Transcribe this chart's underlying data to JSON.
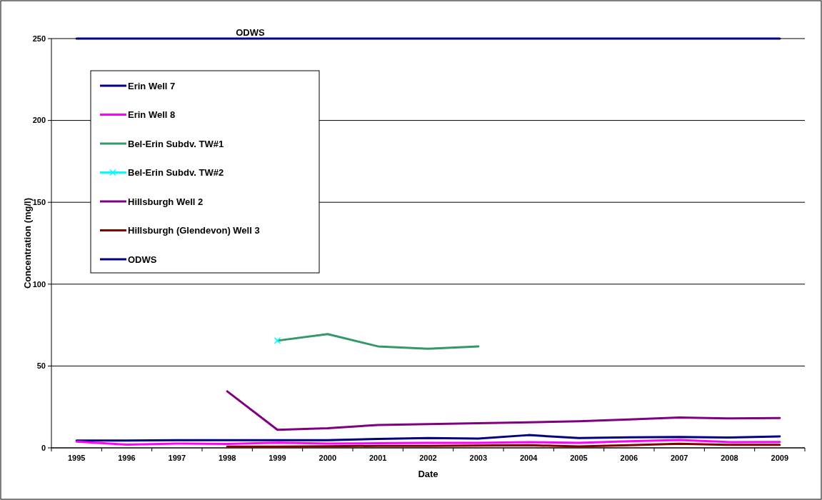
{
  "chart_data": {
    "type": "line",
    "xlabel": "Date",
    "ylabel": "Concentration (mg/l)",
    "categories": [
      "1995",
      "1996",
      "1997",
      "1998",
      "1999",
      "2000",
      "2001",
      "2002",
      "2003",
      "2004",
      "2005",
      "2006",
      "2007",
      "2008",
      "2009"
    ],
    "ylim": [
      0,
      250
    ],
    "yticks": [
      0,
      50,
      100,
      150,
      200,
      250
    ],
    "grid": "y",
    "legend": "top left",
    "marker": "none",
    "line_style": "solid",
    "annotations": [
      {
        "text": "ODWS",
        "x": "1998",
        "y": 250
      }
    ],
    "series": [
      {
        "name": "Erin Well 7",
        "color": "#000080",
        "values": [
          4.5,
          4.5,
          4.7,
          4.7,
          4.7,
          4.7,
          5.5,
          6,
          5.7,
          7.8,
          6,
          6.4,
          6.7,
          6.3,
          7
        ]
      },
      {
        "name": "Erin Well 8",
        "color": "#ff00ff",
        "values": [
          3.8,
          2,
          2.6,
          2.4,
          3.2,
          2.6,
          2.8,
          3,
          3,
          3.5,
          3,
          4,
          4.8,
          3.5,
          3.6
        ]
      },
      {
        "name": "Bel-Erin Subdv. TW#1",
        "color": "#339966",
        "values": [
          null,
          null,
          null,
          null,
          65.5,
          69.5,
          62,
          60.5,
          62,
          null,
          null,
          null,
          null,
          null,
          null
        ]
      },
      {
        "name": "Bel-Erin Subdv. TW#2",
        "color": "#00ffff",
        "marker": "cross",
        "values": [
          null,
          null,
          null,
          null,
          65.5,
          null,
          null,
          null,
          null,
          null,
          null,
          null,
          null,
          null,
          null
        ]
      },
      {
        "name": "Hillsburgh Well 2",
        "color": "#800080",
        "values": [
          null,
          null,
          null,
          34.5,
          11,
          12,
          14,
          14.5,
          15,
          15.6,
          16.2,
          17.3,
          18.5,
          18,
          18.2
        ]
      },
      {
        "name": "Hillsburgh (Glendevon) Well 3",
        "color": "#800000",
        "values": [
          null,
          null,
          null,
          0.8,
          0.8,
          1,
          1.2,
          1.2,
          1.4,
          1.6,
          0.9,
          1.6,
          2.5,
          1.8,
          1.8
        ]
      },
      {
        "name": "ODWS",
        "color": "#000080",
        "values": [
          250,
          250,
          250,
          250,
          250,
          250,
          250,
          250,
          250,
          250,
          250,
          250,
          250,
          250,
          250
        ]
      }
    ]
  }
}
